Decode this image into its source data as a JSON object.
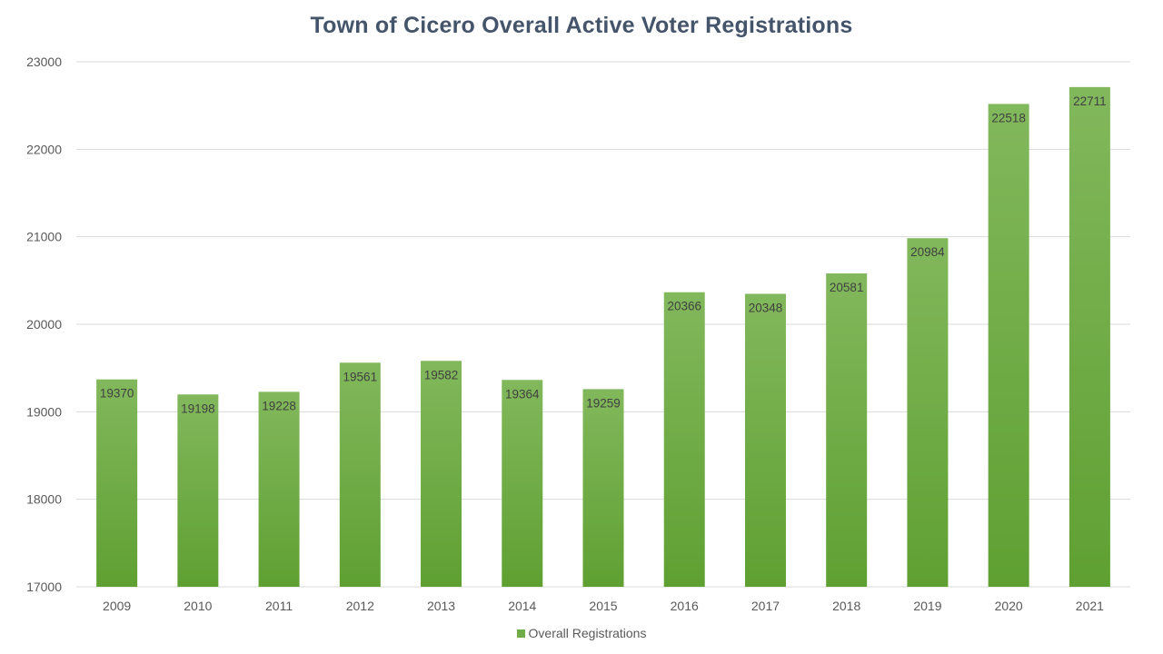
{
  "chart_data": {
    "type": "bar",
    "title": "Town of Cicero Overall Active Voter Registrations",
    "categories": [
      "2009",
      "2010",
      "2011",
      "2012",
      "2013",
      "2014",
      "2015",
      "2016",
      "2017",
      "2018",
      "2019",
      "2020",
      "2021"
    ],
    "series": [
      {
        "name": "Overall Registrations",
        "values": [
          19370,
          19198,
          19228,
          19561,
          19582,
          19364,
          19259,
          20366,
          20348,
          20581,
          20984,
          22518,
          22711
        ],
        "color": "#70ad47"
      }
    ],
    "ylim": [
      17000,
      23000
    ],
    "yticks": [
      17000,
      18000,
      19000,
      20000,
      21000,
      22000,
      23000
    ],
    "xlabel": "",
    "ylabel": "",
    "grid": true,
    "legend": "bottom-center",
    "data_labels": "inside-end"
  }
}
